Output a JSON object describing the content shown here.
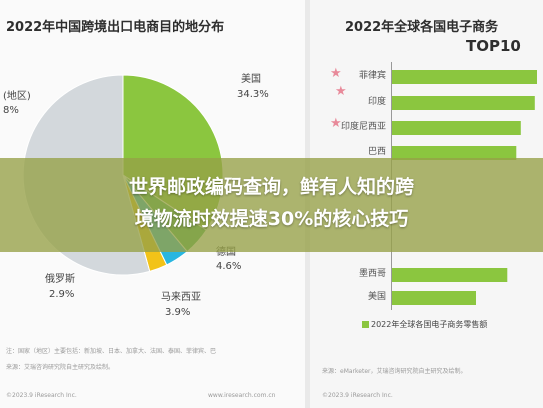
{
  "left_chart": {
    "title": "2022年中国跨境出口电商目的地分布",
    "labels": {
      "usa": "美国",
      "usa_pct": "34.3%",
      "other_name": "(地区)",
      "other_pct": "8%",
      "russia": "俄罗斯",
      "russia_pct": "2.9%",
      "malaysia": "马来西亚",
      "malaysia_pct": "3.9%",
      "germany": "德国",
      "germany_pct": "4.6%"
    },
    "footnote1": "注：国家（地区）主要包括：新加坡、日本、加拿大、法国、泰国、菲律宾、巴",
    "footnote2": "来源：艾瑞咨询研究院自主研究及绘制。",
    "footnote3": "©2023.9 iResearch Inc.",
    "footnote4": "www.iresearch.com.cn"
  },
  "right_chart": {
    "title_line1": "2022年全球各国电子商务",
    "title_line2": "TOP10",
    "legend": "2022年全球各国电子商务零售额",
    "footnote1": "来源：eMarketer，艾瑞咨询研究院自主研究及绘制。",
    "footnote2": "©2023.9 iResearch Inc."
  },
  "banner": {
    "line1": "世界邮政编码查询，鲜有人知的跨",
    "line2": "境物流时效提速30%的核心技巧",
    "color": "#96a046"
  },
  "chart_data": [
    {
      "type": "pie",
      "title": "2022年中国跨境出口电商目的地分布",
      "slices": [
        {
          "label": "美国",
          "value": 34.3,
          "color": "#8bc63f"
        },
        {
          "label": "德国",
          "value": 4.6,
          "color": "#4cb85a"
        },
        {
          "label": "马来西亚",
          "value": 3.9,
          "color": "#29b6e0"
        },
        {
          "label": "俄罗斯",
          "value": 2.9,
          "color": "#f2c318"
        }
      ]
    },
    {
      "type": "bar",
      "orientation": "horizontal",
      "title": "2022年全球各国电子商务 TOP10",
      "categories": [
        "菲律宾",
        "印度",
        "印度尼西亚",
        "巴西",
        "墨西哥",
        "美国"
      ],
      "series": [
        {
          "name": "2022年全球各国电子商务零售额",
          "values": [
            25.9,
            25.5,
            23.0,
            22.2,
            20.6,
            15.0
          ],
          "color": "#8bc63f"
        }
      ],
      "xlabel": "",
      "ylabel": ""
    }
  ]
}
